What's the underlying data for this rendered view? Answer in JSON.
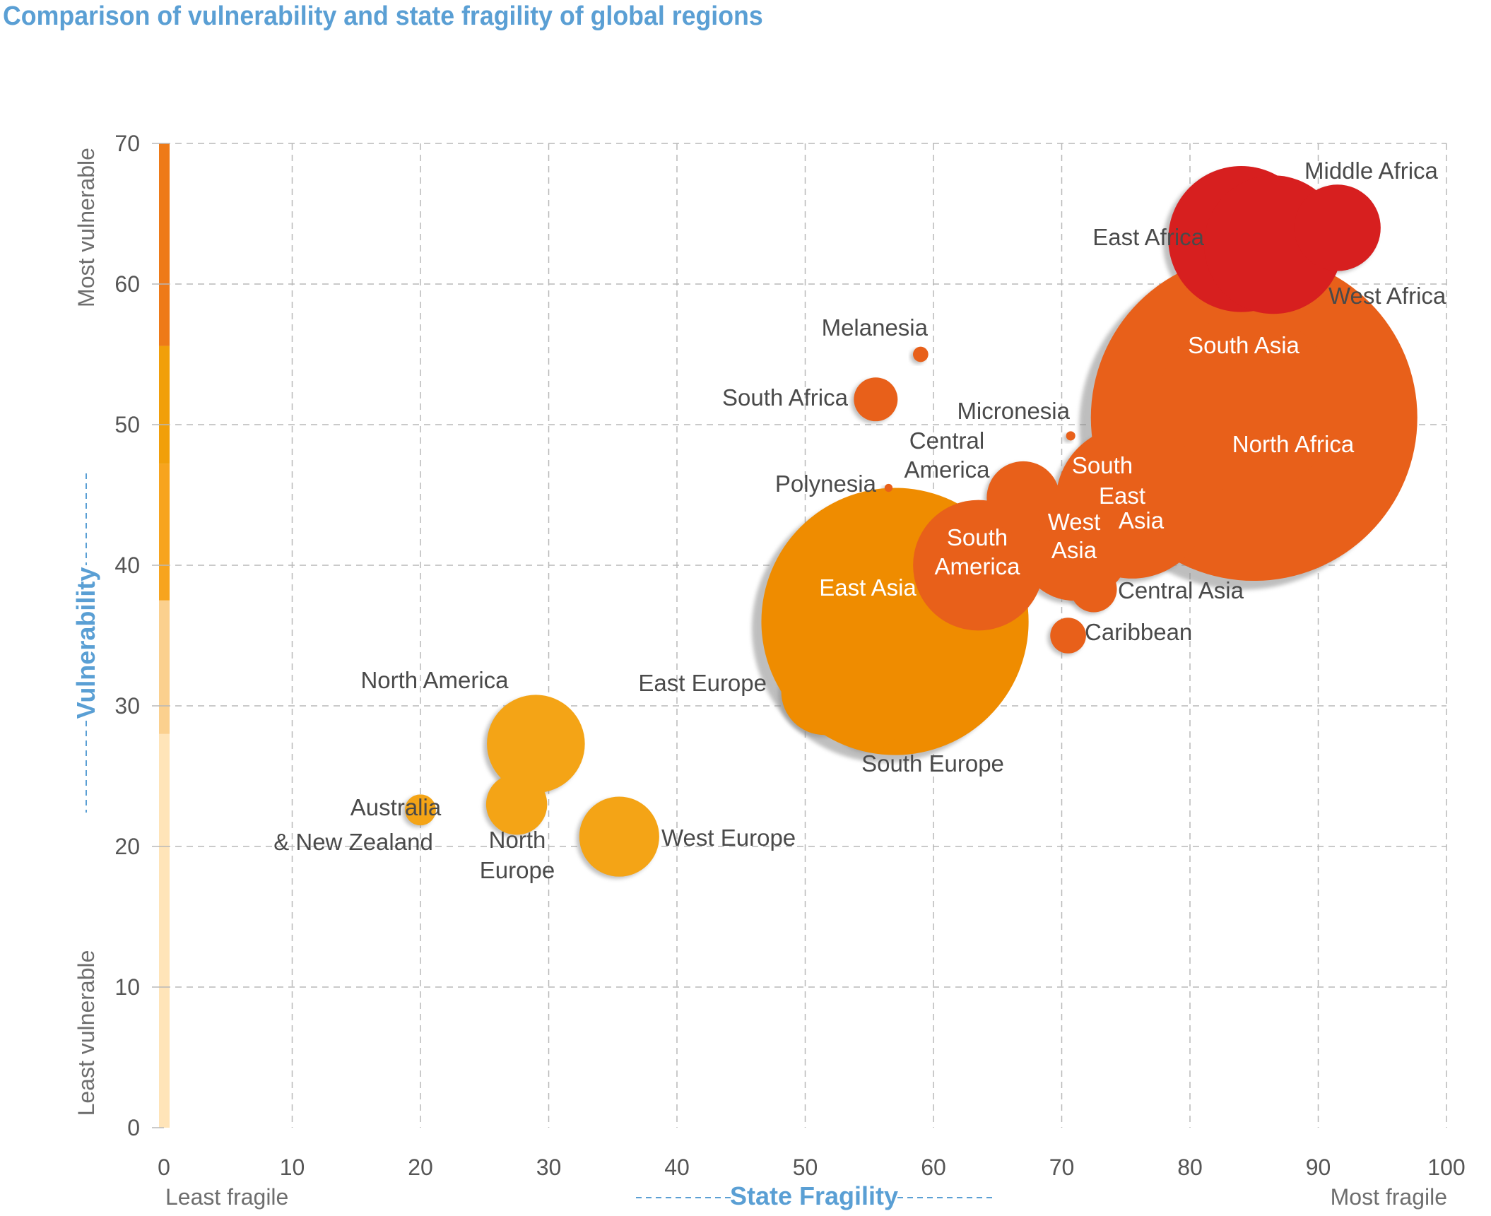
{
  "title": "Comparison of vulnerability and state fragility of global regions",
  "chart_data": {
    "type": "scatter",
    "variant": "bubble",
    "title": "Comparison of vulnerability and state fragility of global regions",
    "xlabel": "State Fragility",
    "ylabel": "Vulnerability",
    "x_low_caption": "Least fragile",
    "x_high_caption": "Most fragile",
    "y_low_caption": "Least vulnerable",
    "y_high_caption": "Most vulnerable",
    "xlim": [
      0,
      100
    ],
    "ylim": [
      0,
      70
    ],
    "x_ticks": [
      "0",
      "10",
      "20",
      "30",
      "40",
      "50",
      "60",
      "70",
      "80",
      "90",
      "100"
    ],
    "y_ticks": [
      "0",
      "10",
      "20",
      "30",
      "40",
      "50",
      "60",
      "70"
    ],
    "grid": true,
    "colors": {
      "red": "#d71f1f",
      "dark_orange": "#e8601a",
      "orange": "#ef8c00",
      "amber": "#f4a416",
      "title": "#5a9fd4",
      "grid": "#b8b8b8"
    },
    "scale_bar_colors": [
      "#ffe4b8",
      "#fbd08e",
      "#f7aa25",
      "#f19f0a",
      "#ee7a18",
      "#ec6f14"
    ],
    "points": [
      {
        "label": "North Africa",
        "x": 85.0,
        "y": 50.5,
        "size": 100,
        "color": "#e8601a",
        "label_inside": true
      },
      {
        "label": "East Asia",
        "x": 57.0,
        "y": 36.0,
        "size": 67,
        "color": "#ef8c00",
        "label_inside": true
      },
      {
        "label": "South Asia",
        "x": 84.5,
        "y": 51.5,
        "size": 30,
        "color": "#e8601a",
        "label_inside": true
      },
      {
        "label": "East Africa",
        "x": 84.0,
        "y": 63.2,
        "size": 20,
        "color": "#d71f1f",
        "label_inside": false
      },
      {
        "label": "West Africa",
        "x": 86.5,
        "y": 62.8,
        "size": 18,
        "color": "#d71f1f",
        "label_inside": false
      },
      {
        "label": "South East Asia",
        "x": 75.5,
        "y": 44.5,
        "size": 22,
        "color": "#e8601a",
        "label_inside": true
      },
      {
        "label": "South America",
        "x": 63.5,
        "y": 40.0,
        "size": 16,
        "color": "#e8601a",
        "label_inside": true
      },
      {
        "label": "West Asia",
        "x": 71.0,
        "y": 41.5,
        "size": 12,
        "color": "#e8601a",
        "label_inside": true
      },
      {
        "label": "Middle Africa",
        "x": 91.5,
        "y": 64.0,
        "size": 7,
        "color": "#d71f1f",
        "label_inside": false
      },
      {
        "label": "North America",
        "x": 29.0,
        "y": 27.3,
        "size": 9,
        "color": "#f4a416",
        "label_inside": false
      },
      {
        "label": "East Europe",
        "x": 51.5,
        "y": 31.0,
        "size": 7,
        "color": "#ef8c00",
        "label_inside": false
      },
      {
        "label": "West Europe",
        "x": 35.5,
        "y": 20.7,
        "size": 6,
        "color": "#f4a416",
        "label_inside": false
      },
      {
        "label": "Central America",
        "x": 67.0,
        "y": 44.8,
        "size": 5,
        "color": "#e8601a",
        "label_inside": false
      },
      {
        "label": "South Europe",
        "x": 55.0,
        "y": 29.3,
        "size": 4.5,
        "color": "#ef8c00",
        "label_inside": false
      },
      {
        "label": "North Europe",
        "x": 27.5,
        "y": 23.0,
        "size": 3.5,
        "color": "#f4a416",
        "label_inside": false
      },
      {
        "label": "Central Asia",
        "x": 72.5,
        "y": 38.3,
        "size": 2,
        "color": "#e8601a",
        "label_inside": false
      },
      {
        "label": "South Africa",
        "x": 55.5,
        "y": 51.8,
        "size": 1.8,
        "color": "#e8601a",
        "label_inside": false
      },
      {
        "label": "Caribbean",
        "x": 70.5,
        "y": 35.0,
        "size": 1.2,
        "color": "#e8601a",
        "label_inside": false
      },
      {
        "label": "Australia & New Zealand",
        "x": 20.0,
        "y": 22.6,
        "size": 0.9,
        "color": "#f4a416",
        "label_inside": false
      },
      {
        "label": "Melanesia",
        "x": 59.0,
        "y": 55.0,
        "size": 0.22,
        "color": "#e8601a",
        "label_inside": false
      },
      {
        "label": "Micronesia",
        "x": 70.7,
        "y": 49.2,
        "size": 0.08,
        "color": "#e8601a",
        "label_inside": false
      },
      {
        "label": "Polynesia",
        "x": 56.5,
        "y": 45.5,
        "size": 0.06,
        "color": "#e8601a",
        "label_inside": false
      }
    ]
  }
}
